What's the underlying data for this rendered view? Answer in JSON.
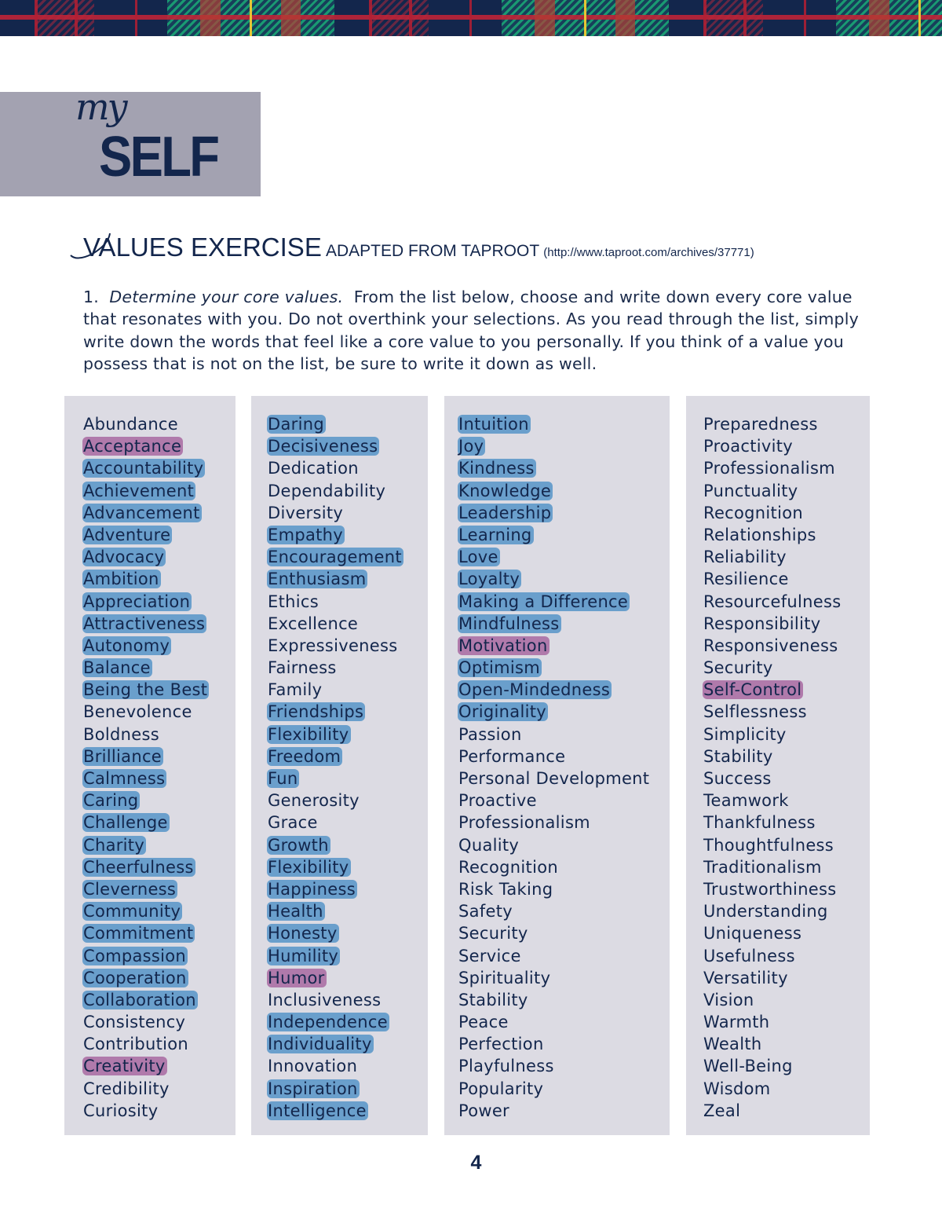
{
  "logo": {
    "script": "my",
    "word": "SELF"
  },
  "heading": {
    "title": "VALUES EXERCISE",
    "subtitle": "ADAPTED FROM TAPROOT",
    "url": "(http://www.taproot.com/archives/37771)"
  },
  "intro": {
    "number": "1.",
    "emphasis": "Determine your core values.",
    "text": "From the list below, choose and write down every core value that resonates with you.  Do not overthink your selections.  As you read through the list, simply write down the words that feel like a core value to you personally.  If you think of a value you possess that is not on the list, be sure to write it down as well."
  },
  "highlight_colors": {
    "b": "#6a9fcc",
    "p": "#b07aab"
  },
  "columns": [
    [
      {
        "t": "Abundance",
        "h": ""
      },
      {
        "t": "Acceptance",
        "h": "p"
      },
      {
        "t": "Accountability",
        "h": "b"
      },
      {
        "t": "Achievement",
        "h": "b"
      },
      {
        "t": "Advancement",
        "h": "b"
      },
      {
        "t": "Adventure",
        "h": "b"
      },
      {
        "t": "Advocacy",
        "h": "b"
      },
      {
        "t": "Ambition",
        "h": "b"
      },
      {
        "t": "Appreciation",
        "h": "b"
      },
      {
        "t": "Attractiveness",
        "h": "b"
      },
      {
        "t": "Autonomy",
        "h": "b"
      },
      {
        "t": "Balance",
        "h": "b"
      },
      {
        "t": "Being the Best",
        "h": "b"
      },
      {
        "t": "Benevolence",
        "h": ""
      },
      {
        "t": "Boldness",
        "h": ""
      },
      {
        "t": "Brilliance",
        "h": "b"
      },
      {
        "t": "Calmness",
        "h": "b"
      },
      {
        "t": "Caring",
        "h": "b"
      },
      {
        "t": "Challenge",
        "h": "b"
      },
      {
        "t": "Charity",
        "h": "b"
      },
      {
        "t": "Cheerfulness",
        "h": "b"
      },
      {
        "t": "Cleverness",
        "h": "b"
      },
      {
        "t": "Community",
        "h": "b"
      },
      {
        "t": "Commitment",
        "h": "b"
      },
      {
        "t": "Compassion",
        "h": "b"
      },
      {
        "t": "Cooperation",
        "h": "b"
      },
      {
        "t": "Collaboration",
        "h": "b"
      },
      {
        "t": "Consistency",
        "h": ""
      },
      {
        "t": "Contribution",
        "h": ""
      },
      {
        "t": "Creativity",
        "h": "p"
      },
      {
        "t": "Credibility",
        "h": ""
      },
      {
        "t": "Curiosity",
        "h": ""
      }
    ],
    [
      {
        "t": "Daring",
        "h": "b"
      },
      {
        "t": "Decisiveness",
        "h": "b"
      },
      {
        "t": "Dedication",
        "h": ""
      },
      {
        "t": "Dependability",
        "h": ""
      },
      {
        "t": "Diversity",
        "h": ""
      },
      {
        "t": "Empathy",
        "h": "b"
      },
      {
        "t": "Encouragement",
        "h": "b"
      },
      {
        "t": "Enthusiasm",
        "h": "b"
      },
      {
        "t": "Ethics",
        "h": ""
      },
      {
        "t": "Excellence",
        "h": ""
      },
      {
        "t": "Expressiveness",
        "h": ""
      },
      {
        "t": "Fairness",
        "h": ""
      },
      {
        "t": "Family",
        "h": ""
      },
      {
        "t": "Friendships",
        "h": "b"
      },
      {
        "t": "Flexibility",
        "h": "b"
      },
      {
        "t": "Freedom",
        "h": "b"
      },
      {
        "t": "Fun",
        "h": "b"
      },
      {
        "t": "Generosity",
        "h": ""
      },
      {
        "t": "Grace",
        "h": ""
      },
      {
        "t": "Growth",
        "h": "b"
      },
      {
        "t": "Flexibility",
        "h": "b"
      },
      {
        "t": "Happiness",
        "h": "b"
      },
      {
        "t": "Health",
        "h": "b"
      },
      {
        "t": "Honesty",
        "h": "b"
      },
      {
        "t": "Humility",
        "h": "b"
      },
      {
        "t": "Humor",
        "h": "p"
      },
      {
        "t": "Inclusiveness",
        "h": ""
      },
      {
        "t": "Independence",
        "h": "b"
      },
      {
        "t": "Individuality",
        "h": "b"
      },
      {
        "t": "Innovation",
        "h": ""
      },
      {
        "t": "Inspiration",
        "h": "b"
      },
      {
        "t": "Intelligence",
        "h": "b"
      }
    ],
    [
      {
        "t": "Intuition",
        "h": "b"
      },
      {
        "t": "Joy",
        "h": "b"
      },
      {
        "t": "Kindness",
        "h": "b"
      },
      {
        "t": "Knowledge",
        "h": "b"
      },
      {
        "t": "Leadership",
        "h": "b"
      },
      {
        "t": "Learning",
        "h": "b"
      },
      {
        "t": "Love",
        "h": "b"
      },
      {
        "t": "Loyalty",
        "h": "b"
      },
      {
        "t": "Making a Difference",
        "h": "b"
      },
      {
        "t": "Mindfulness",
        "h": "b"
      },
      {
        "t": "Motivation",
        "h": "p"
      },
      {
        "t": "Optimism",
        "h": "b"
      },
      {
        "t": "Open-Mindedness",
        "h": "b"
      },
      {
        "t": "Originality",
        "h": "b"
      },
      {
        "t": "Passion",
        "h": ""
      },
      {
        "t": "Performance",
        "h": ""
      },
      {
        "t": "Personal Development",
        "h": ""
      },
      {
        "t": "Proactive",
        "h": ""
      },
      {
        "t": "Professionalism",
        "h": ""
      },
      {
        "t": "Quality",
        "h": ""
      },
      {
        "t": "Recognition",
        "h": ""
      },
      {
        "t": "Risk Taking",
        "h": ""
      },
      {
        "t": "Safety",
        "h": ""
      },
      {
        "t": "Security",
        "h": ""
      },
      {
        "t": "Service",
        "h": ""
      },
      {
        "t": "Spirituality",
        "h": ""
      },
      {
        "t": "Stability",
        "h": ""
      },
      {
        "t": "Peace",
        "h": ""
      },
      {
        "t": "Perfection",
        "h": ""
      },
      {
        "t": "Playfulness",
        "h": ""
      },
      {
        "t": "Popularity",
        "h": ""
      },
      {
        "t": "Power",
        "h": ""
      }
    ],
    [
      {
        "t": "Preparedness",
        "h": ""
      },
      {
        "t": "Proactivity",
        "h": ""
      },
      {
        "t": "Professionalism",
        "h": ""
      },
      {
        "t": "Punctuality",
        "h": ""
      },
      {
        "t": "Recognition",
        "h": ""
      },
      {
        "t": "Relationships",
        "h": ""
      },
      {
        "t": "Reliability",
        "h": ""
      },
      {
        "t": "Resilience",
        "h": ""
      },
      {
        "t": "Resourcefulness",
        "h": ""
      },
      {
        "t": "Responsibility",
        "h": ""
      },
      {
        "t": "Responsiveness",
        "h": ""
      },
      {
        "t": "Security",
        "h": ""
      },
      {
        "t": "Self-Control",
        "h": "p"
      },
      {
        "t": "Selflessness",
        "h": ""
      },
      {
        "t": "Simplicity",
        "h": ""
      },
      {
        "t": "Stability",
        "h": ""
      },
      {
        "t": "Success",
        "h": ""
      },
      {
        "t": "Teamwork",
        "h": ""
      },
      {
        "t": "Thankfulness",
        "h": ""
      },
      {
        "t": "Thoughtfulness",
        "h": ""
      },
      {
        "t": "Traditionalism",
        "h": ""
      },
      {
        "t": "Trustworthiness",
        "h": ""
      },
      {
        "t": "Understanding",
        "h": ""
      },
      {
        "t": "Uniqueness",
        "h": ""
      },
      {
        "t": "Usefulness",
        "h": ""
      },
      {
        "t": "Versatility",
        "h": ""
      },
      {
        "t": "Vision",
        "h": ""
      },
      {
        "t": "Warmth",
        "h": ""
      },
      {
        "t": "Wealth",
        "h": ""
      },
      {
        "t": "Well-Being",
        "h": ""
      },
      {
        "t": "Wisdom",
        "h": ""
      },
      {
        "t": "Zeal",
        "h": ""
      }
    ]
  ],
  "page_number": "4"
}
